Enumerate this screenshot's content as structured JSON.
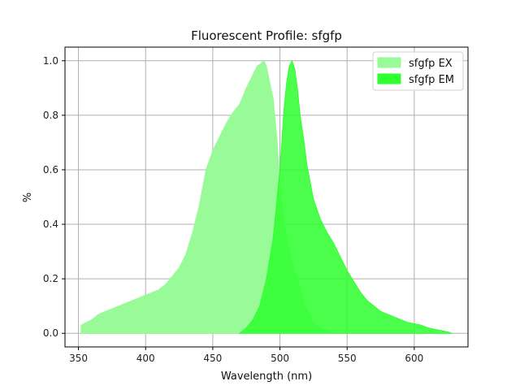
{
  "chart_data": {
    "type": "area",
    "title": "Fluorescent Profile: sfgfp",
    "xlabel": "Wavelength (nm)",
    "ylabel": "%",
    "xlim": [
      340,
      640
    ],
    "ylim": [
      -0.05,
      1.05
    ],
    "xticks": [
      350,
      400,
      450,
      500,
      550,
      600
    ],
    "yticks": [
      0.0,
      0.2,
      0.4,
      0.6,
      0.8,
      1.0
    ],
    "grid": true,
    "legend_position": "top-right",
    "series": [
      {
        "name": "sfgfp EX",
        "color": "#98fb98",
        "x": [
          352,
          356,
          360,
          365,
          370,
          375,
          380,
          385,
          390,
          395,
          400,
          405,
          410,
          415,
          420,
          425,
          430,
          435,
          440,
          445,
          450,
          455,
          460,
          465,
          470,
          475,
          480,
          483,
          486,
          488,
          490,
          492,
          495,
          498,
          500,
          503,
          506,
          510,
          515,
          520,
          525,
          530,
          535,
          540
        ],
        "values": [
          0.03,
          0.04,
          0.05,
          0.07,
          0.08,
          0.09,
          0.1,
          0.11,
          0.12,
          0.13,
          0.14,
          0.15,
          0.16,
          0.18,
          0.21,
          0.24,
          0.29,
          0.37,
          0.47,
          0.6,
          0.67,
          0.72,
          0.77,
          0.81,
          0.84,
          0.9,
          0.95,
          0.98,
          0.99,
          1.0,
          0.98,
          0.93,
          0.86,
          0.7,
          0.55,
          0.42,
          0.33,
          0.25,
          0.17,
          0.09,
          0.04,
          0.02,
          0.01,
          0.0
        ]
      },
      {
        "name": "sfgfp EM",
        "color": "#2eff2e",
        "x": [
          470,
          475,
          480,
          485,
          490,
          495,
          500,
          503,
          505,
          507,
          509,
          511,
          513,
          515,
          518,
          520,
          525,
          530,
          535,
          540,
          545,
          550,
          555,
          560,
          565,
          570,
          575,
          580,
          585,
          590,
          595,
          600,
          605,
          610,
          615,
          620,
          625,
          628
        ],
        "values": [
          0.0,
          0.02,
          0.05,
          0.1,
          0.2,
          0.35,
          0.6,
          0.82,
          0.92,
          0.98,
          1.0,
          0.97,
          0.9,
          0.8,
          0.7,
          0.62,
          0.49,
          0.42,
          0.37,
          0.33,
          0.28,
          0.23,
          0.19,
          0.15,
          0.12,
          0.1,
          0.08,
          0.07,
          0.06,
          0.05,
          0.04,
          0.035,
          0.03,
          0.02,
          0.015,
          0.01,
          0.005,
          0.0
        ]
      }
    ]
  }
}
